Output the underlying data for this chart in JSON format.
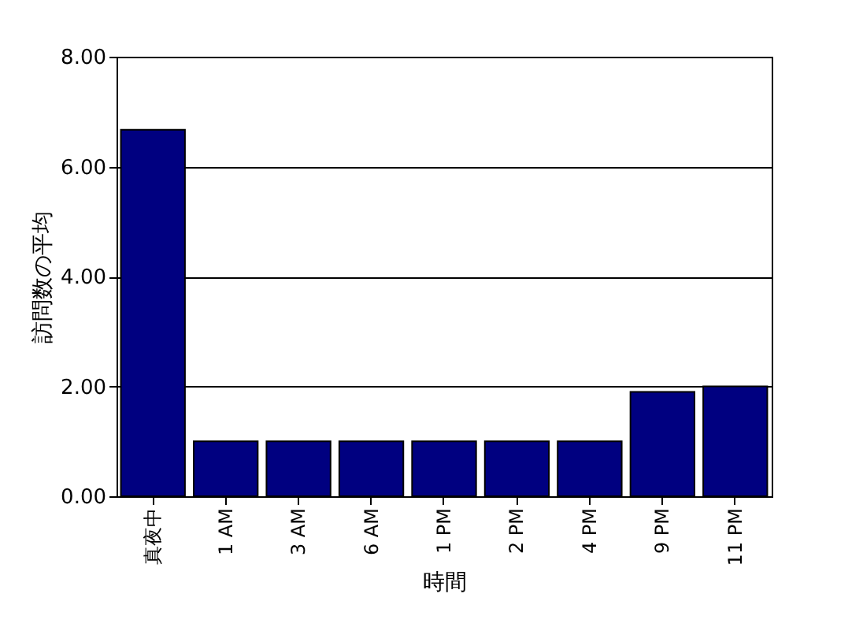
{
  "chart_data": {
    "type": "bar",
    "xlabel": "時間",
    "ylabel": "訪問数の平均",
    "categories": [
      "真夜中",
      "1 AM",
      "3 AM",
      "6 AM",
      "1 PM",
      "2 PM",
      "4 PM",
      "9 PM",
      "11 PM"
    ],
    "values": [
      6.67,
      1,
      1,
      1,
      1,
      1,
      1,
      1.9,
      2
    ],
    "color": "#000080",
    "ylim": [
      0,
      8
    ],
    "yticks": [
      {
        "value": 0,
        "label": "0.00"
      },
      {
        "value": 2,
        "label": "2.00"
      },
      {
        "value": 4,
        "label": "4.00"
      },
      {
        "value": 6,
        "label": "6.00"
      },
      {
        "value": 8,
        "label": "8.00"
      }
    ],
    "grid": "y"
  }
}
